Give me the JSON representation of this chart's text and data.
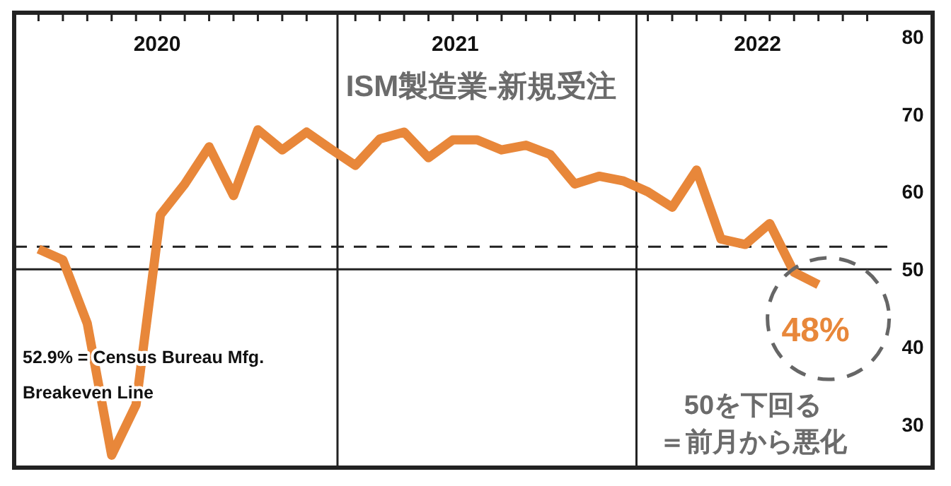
{
  "chart_data": {
    "type": "line",
    "title": "ISM製造業-新規受注",
    "x": [
      "2019-12",
      "2020-01",
      "2020-02",
      "2020-03",
      "2020-04",
      "2020-05",
      "2020-06",
      "2020-07",
      "2020-08",
      "2020-09",
      "2020-10",
      "2020-11",
      "2020-12",
      "2021-01",
      "2021-02",
      "2021-03",
      "2021-04",
      "2021-05",
      "2021-06",
      "2021-07",
      "2021-08",
      "2021-09",
      "2021-10",
      "2021-11",
      "2021-12",
      "2022-01",
      "2022-02",
      "2022-03",
      "2022-04",
      "2022-05",
      "2022-06",
      "2022-07",
      "2022-08"
    ],
    "series": [
      {
        "color": "#e8873a",
        "values": [
          52.6,
          51.2,
          43,
          26,
          32.5,
          57,
          61,
          65.8,
          59.5,
          68,
          65.4,
          67.7,
          65.5,
          63.4,
          66.8,
          67.7,
          64.4,
          66.7,
          66.7,
          65.4,
          66,
          64.8,
          61,
          62,
          61.4,
          60,
          58,
          62.8,
          53.9,
          53.2,
          55.9,
          49.6,
          48
        ]
      }
    ],
    "xlim": [
      "2019-11",
      "2022-11"
    ],
    "xticks": [
      {
        "value": "2019-12",
        "label": null
      },
      {
        "value": "2020-01",
        "label": null
      },
      {
        "value": "2020-02",
        "label": null
      },
      {
        "value": "2020-03",
        "label": null
      },
      {
        "value": "2020-04",
        "label": null
      },
      {
        "value": "2020-05",
        "label": null
      },
      {
        "value": "2020-06",
        "label": null
      },
      {
        "value": "2020-07",
        "label": null
      },
      {
        "value": "2020-08",
        "label": null
      },
      {
        "value": "2020-09",
        "label": null
      },
      {
        "value": "2020-10",
        "label": null
      },
      {
        "value": "2020-11",
        "label": null
      },
      {
        "value": "2021-01",
        "label": null
      },
      {
        "value": "2021-02",
        "label": null
      },
      {
        "value": "2021-03",
        "label": null
      },
      {
        "value": "2021-04",
        "label": null
      },
      {
        "value": "2021-05",
        "label": null
      },
      {
        "value": "2021-06",
        "label": null
      },
      {
        "value": "2021-07",
        "label": null
      },
      {
        "value": "2021-08",
        "label": null
      },
      {
        "value": "2021-09",
        "label": null
      },
      {
        "value": "2021-10",
        "label": null
      },
      {
        "value": "2021-11",
        "label": null
      },
      {
        "value": "2022-01",
        "label": null
      },
      {
        "value": "2022-02",
        "label": null
      },
      {
        "value": "2022-03",
        "label": null
      },
      {
        "value": "2022-04",
        "label": null
      },
      {
        "value": "2022-05",
        "label": null
      },
      {
        "value": "2022-06",
        "label": null
      },
      {
        "value": "2022-07",
        "label": null
      },
      {
        "value": "2022-08",
        "label": null
      },
      {
        "value": "2022-09",
        "label": null
      },
      {
        "value": "2022-10",
        "label": null
      },
      {
        "value": "2020-04-27",
        "label": "2020"
      },
      {
        "value": "2021-05-04",
        "label": "2021"
      },
      {
        "value": "2022-05-16",
        "label": "2022"
      }
    ],
    "ylim": [
      24.4,
      83.1
    ],
    "yticks": [
      30,
      40,
      50,
      60,
      70,
      80
    ],
    "ref_lines": [
      {
        "axis": "y",
        "value": 50,
        "color": "#222222",
        "line_style": "solid"
      },
      {
        "axis": "y",
        "value": 52.9,
        "label": "52.9% = Census Bureau Mfg. Breakeven Line",
        "color": "#222222",
        "line_style": "dashed"
      },
      {
        "axis": "x",
        "value": "2020-12-09",
        "color": "#222222",
        "line_style": "solid"
      },
      {
        "axis": "x",
        "value": "2021-12-17",
        "color": "#222222",
        "line_style": "solid"
      }
    ],
    "annotations": [
      {
        "text": "48%",
        "x": "2022-08",
        "y": 48
      },
      "50を下回る",
      "＝前月から悪化"
    ],
    "grid": false,
    "marker": "none",
    "line_style": "solid"
  }
}
